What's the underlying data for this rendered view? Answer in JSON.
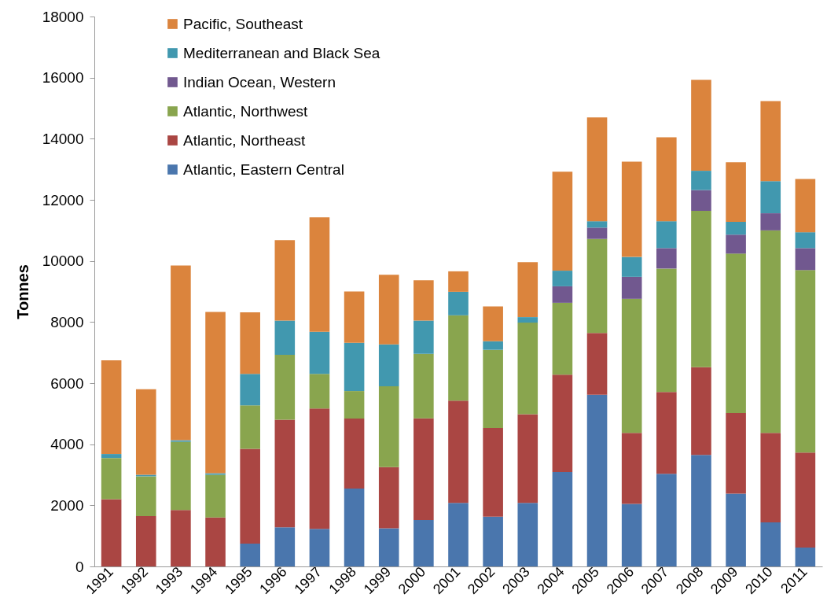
{
  "chart_data": {
    "type": "bar",
    "stacked": true,
    "ylabel": "Tonnes",
    "categories": [
      "1991",
      "1992",
      "1993",
      "1994",
      "1995",
      "1996",
      "1997",
      "1998",
      "1999",
      "2000",
      "2001",
      "2002",
      "2003",
      "2004",
      "2005",
      "2006",
      "2007",
      "2008",
      "2009",
      "2010",
      "2011"
    ],
    "series": [
      {
        "name": "Atlantic, Eastern Central",
        "color": "#4a76ad",
        "values": [
          0,
          0,
          0,
          0,
          750,
          1280,
          1230,
          2550,
          1250,
          1520,
          2080,
          1630,
          2080,
          3090,
          5620,
          2050,
          3030,
          3650,
          2380,
          1440,
          620
        ]
      },
      {
        "name": "Atlantic, Northeast",
        "color": "#aa4643",
        "values": [
          2200,
          1650,
          1850,
          1600,
          3100,
          3520,
          3940,
          2290,
          2000,
          3330,
          3350,
          2900,
          2900,
          3190,
          2020,
          2320,
          2680,
          2870,
          2640,
          2930,
          3110
        ]
      },
      {
        "name": "Atlantic, Northwest",
        "color": "#89a54e",
        "values": [
          1350,
          1300,
          2230,
          1400,
          1420,
          2130,
          1130,
          900,
          2650,
          2110,
          2790,
          2560,
          3000,
          2350,
          3080,
          4390,
          4040,
          5120,
          5220,
          6630,
          5970
        ]
      },
      {
        "name": "Indian Ocean, Western",
        "color": "#71588f",
        "values": [
          0,
          0,
          0,
          0,
          0,
          0,
          0,
          0,
          0,
          0,
          0,
          0,
          0,
          540,
          370,
          720,
          670,
          680,
          620,
          560,
          720
        ]
      },
      {
        "name": "Mediterranean and Black Sea",
        "color": "#4198af",
        "values": [
          130,
          50,
          50,
          50,
          1030,
          1120,
          1380,
          1580,
          1370,
          1090,
          770,
          280,
          180,
          510,
          210,
          650,
          880,
          630,
          420,
          1050,
          520
        ]
      },
      {
        "name": "Pacific, Southeast",
        "color": "#db843d",
        "values": [
          3070,
          2800,
          5720,
          5280,
          2020,
          2630,
          3750,
          1680,
          2280,
          1320,
          670,
          1140,
          1800,
          3240,
          3400,
          3120,
          2750,
          2980,
          1950,
          2620,
          1740
        ]
      }
    ],
    "ylim": [
      0,
      18000
    ],
    "yticks": [
      0,
      2000,
      4000,
      6000,
      8000,
      10000,
      12000,
      14000,
      16000,
      18000
    ],
    "legend": "top left"
  }
}
